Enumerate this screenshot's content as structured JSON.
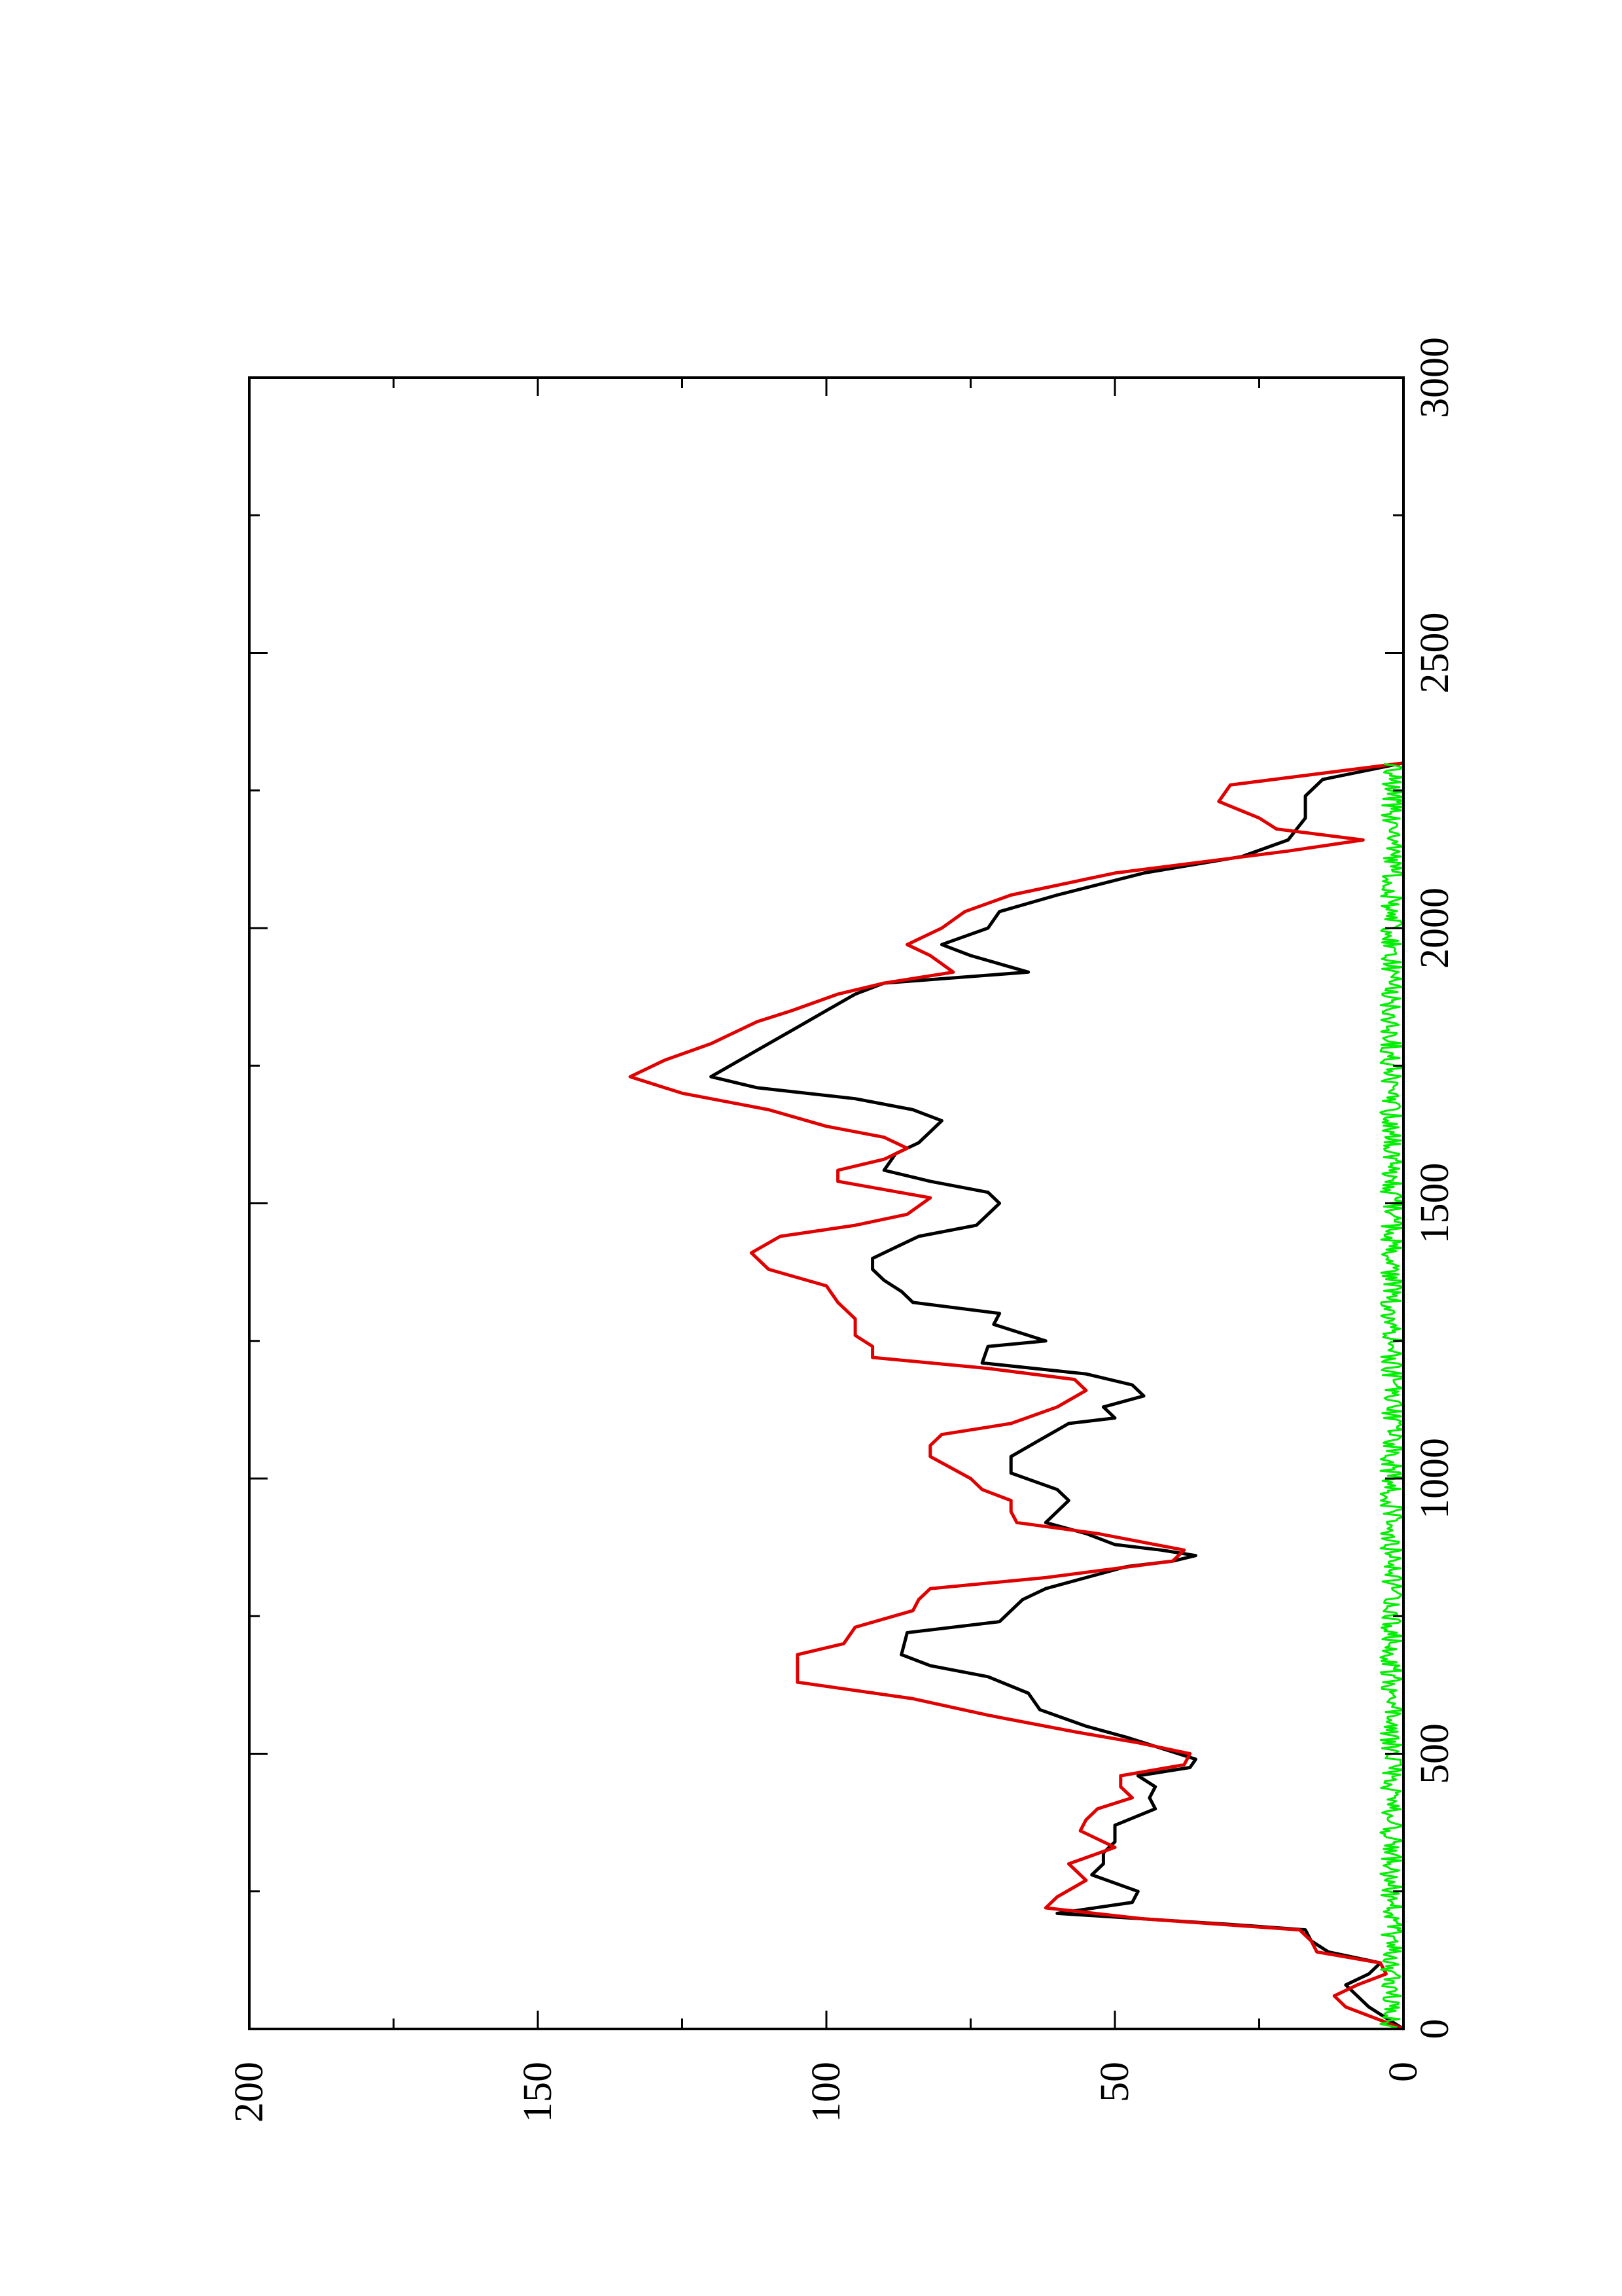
{
  "chart_data": {
    "type": "line",
    "title": "",
    "xlabel": "",
    "ylabel": "",
    "orientation": "rotated-90-clockwise",
    "xlim": [
      0,
      3000
    ],
    "ylim": [
      0,
      200
    ],
    "x_ticks": [
      "0",
      "500",
      "1000",
      "1500",
      "2000",
      "2500",
      "3000"
    ],
    "y_ticks": [
      "0",
      "50",
      "100",
      "150",
      "200"
    ],
    "grid": false,
    "legend": "none",
    "series": [
      {
        "color": "#000000",
        "points": [
          [
            0,
            0
          ],
          [
            20,
            3
          ],
          [
            40,
            6
          ],
          [
            60,
            8
          ],
          [
            80,
            10
          ],
          [
            100,
            6
          ],
          [
            120,
            4
          ],
          [
            140,
            13
          ],
          [
            160,
            16
          ],
          [
            180,
            17
          ],
          [
            190,
            30
          ],
          [
            210,
            60
          ],
          [
            230,
            47
          ],
          [
            250,
            46
          ],
          [
            280,
            54
          ],
          [
            300,
            52
          ],
          [
            320,
            52
          ],
          [
            340,
            50
          ],
          [
            370,
            50
          ],
          [
            400,
            43
          ],
          [
            420,
            44
          ],
          [
            440,
            43
          ],
          [
            460,
            46
          ],
          [
            475,
            37
          ],
          [
            490,
            36
          ],
          [
            510,
            42
          ],
          [
            530,
            48
          ],
          [
            550,
            55
          ],
          [
            580,
            63
          ],
          [
            610,
            65
          ],
          [
            640,
            72
          ],
          [
            660,
            82
          ],
          [
            680,
            87
          ],
          [
            720,
            86
          ],
          [
            740,
            70
          ],
          [
            760,
            68
          ],
          [
            780,
            66
          ],
          [
            800,
            62
          ],
          [
            820,
            55
          ],
          [
            840,
            48
          ],
          [
            850,
            40
          ],
          [
            860,
            36
          ],
          [
            870,
            42
          ],
          [
            880,
            50
          ],
          [
            900,
            55
          ],
          [
            920,
            62
          ],
          [
            960,
            58
          ],
          [
            980,
            60
          ],
          [
            1010,
            68
          ],
          [
            1040,
            68
          ],
          [
            1070,
            63
          ],
          [
            1100,
            58
          ],
          [
            1110,
            50
          ],
          [
            1130,
            52
          ],
          [
            1150,
            45
          ],
          [
            1170,
            47
          ],
          [
            1190,
            55
          ],
          [
            1210,
            73
          ],
          [
            1240,
            72
          ],
          [
            1250,
            62
          ],
          [
            1280,
            71
          ],
          [
            1300,
            70
          ],
          [
            1320,
            85
          ],
          [
            1340,
            87
          ],
          [
            1360,
            90
          ],
          [
            1380,
            92
          ],
          [
            1400,
            92
          ],
          [
            1420,
            88
          ],
          [
            1440,
            84
          ],
          [
            1460,
            74
          ],
          [
            1480,
            72
          ],
          [
            1500,
            70
          ],
          [
            1520,
            72
          ],
          [
            1540,
            82
          ],
          [
            1560,
            90
          ],
          [
            1590,
            88
          ],
          [
            1610,
            84
          ],
          [
            1630,
            82
          ],
          [
            1650,
            80
          ],
          [
            1670,
            85
          ],
          [
            1690,
            95
          ],
          [
            1710,
            112
          ],
          [
            1730,
            120
          ],
          [
            1760,
            115
          ],
          [
            1790,
            110
          ],
          [
            1820,
            105
          ],
          [
            1850,
            100
          ],
          [
            1880,
            95
          ],
          [
            1900,
            90
          ],
          [
            1920,
            65
          ],
          [
            1950,
            75
          ],
          [
            1970,
            80
          ],
          [
            2000,
            72
          ],
          [
            2030,
            70
          ],
          [
            2060,
            60
          ],
          [
            2100,
            45
          ],
          [
            2130,
            28
          ],
          [
            2160,
            20
          ],
          [
            2200,
            17
          ],
          [
            2240,
            17
          ],
          [
            2270,
            14
          ],
          [
            2300,
            0
          ]
        ]
      },
      {
        "color": "#e00000",
        "points": [
          [
            0,
            0
          ],
          [
            20,
            5
          ],
          [
            40,
            10
          ],
          [
            60,
            12
          ],
          [
            80,
            8
          ],
          [
            100,
            3
          ],
          [
            120,
            4
          ],
          [
            140,
            15
          ],
          [
            160,
            16
          ],
          [
            180,
            18
          ],
          [
            200,
            45
          ],
          [
            220,
            62
          ],
          [
            240,
            60
          ],
          [
            270,
            55
          ],
          [
            300,
            58
          ],
          [
            330,
            50
          ],
          [
            360,
            56
          ],
          [
            380,
            55
          ],
          [
            400,
            53
          ],
          [
            420,
            47
          ],
          [
            440,
            49
          ],
          [
            460,
            49
          ],
          [
            480,
            38
          ],
          [
            500,
            37
          ],
          [
            520,
            46
          ],
          [
            540,
            57
          ],
          [
            570,
            72
          ],
          [
            600,
            85
          ],
          [
            630,
            105
          ],
          [
            660,
            105
          ],
          [
            680,
            105
          ],
          [
            700,
            97
          ],
          [
            730,
            95
          ],
          [
            760,
            85
          ],
          [
            780,
            84
          ],
          [
            800,
            82
          ],
          [
            820,
            62
          ],
          [
            850,
            40
          ],
          [
            870,
            38
          ],
          [
            880,
            43
          ],
          [
            900,
            53
          ],
          [
            920,
            67
          ],
          [
            940,
            68
          ],
          [
            960,
            68
          ],
          [
            980,
            73
          ],
          [
            1000,
            75
          ],
          [
            1040,
            82
          ],
          [
            1060,
            82
          ],
          [
            1080,
            80
          ],
          [
            1100,
            68
          ],
          [
            1130,
            60
          ],
          [
            1160,
            55
          ],
          [
            1180,
            57
          ],
          [
            1200,
            72
          ],
          [
            1220,
            92
          ],
          [
            1240,
            92
          ],
          [
            1260,
            95
          ],
          [
            1290,
            95
          ],
          [
            1320,
            98
          ],
          [
            1350,
            100
          ],
          [
            1380,
            110
          ],
          [
            1410,
            113
          ],
          [
            1440,
            108
          ],
          [
            1460,
            95
          ],
          [
            1480,
            86
          ],
          [
            1510,
            82
          ],
          [
            1540,
            98
          ],
          [
            1560,
            98
          ],
          [
            1580,
            90
          ],
          [
            1600,
            86
          ],
          [
            1620,
            90
          ],
          [
            1640,
            100
          ],
          [
            1670,
            110
          ],
          [
            1700,
            125
          ],
          [
            1730,
            134
          ],
          [
            1760,
            128
          ],
          [
            1790,
            120
          ],
          [
            1830,
            112
          ],
          [
            1850,
            106
          ],
          [
            1880,
            98
          ],
          [
            1900,
            90
          ],
          [
            1920,
            78
          ],
          [
            1950,
            82
          ],
          [
            1970,
            86
          ],
          [
            2000,
            80
          ],
          [
            2030,
            76
          ],
          [
            2060,
            68
          ],
          [
            2100,
            50
          ],
          [
            2140,
            20
          ],
          [
            2160,
            7
          ],
          [
            2180,
            22
          ],
          [
            2200,
            25
          ],
          [
            2230,
            32
          ],
          [
            2260,
            30
          ],
          [
            2300,
            0
          ]
        ]
      },
      {
        "color": "#00ee00",
        "noise_band": [
          0,
          4
        ],
        "x_range": [
          0,
          2300
        ]
      }
    ]
  }
}
